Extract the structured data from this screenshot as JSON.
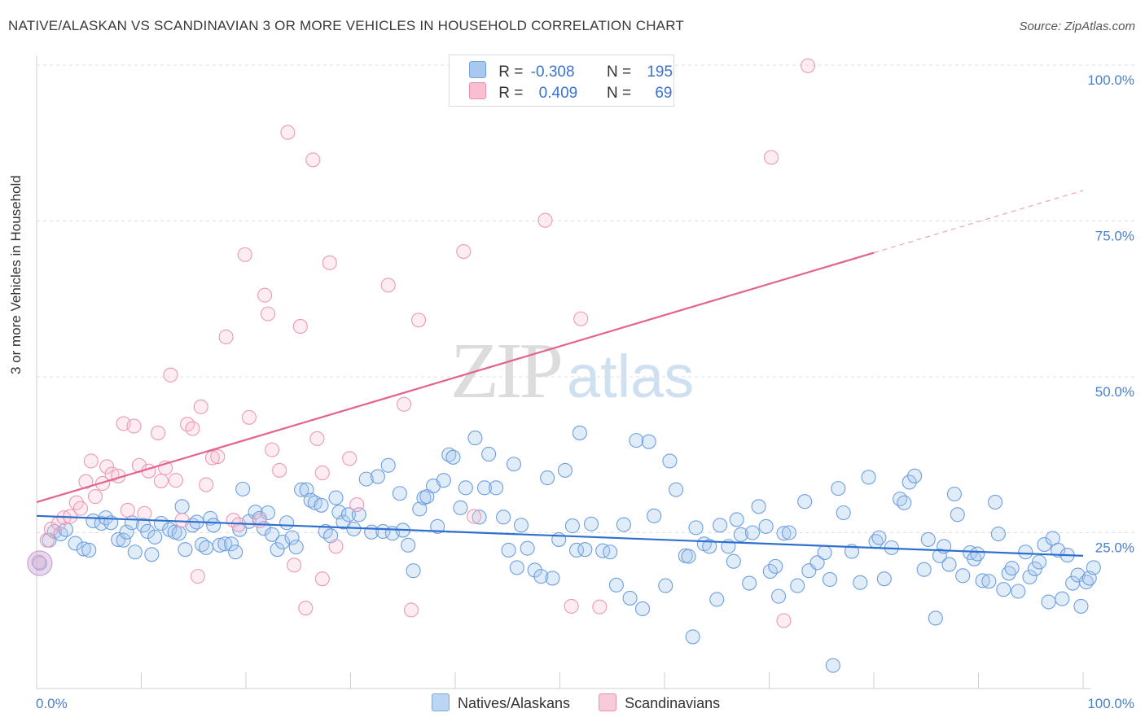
{
  "title": "NATIVE/ALASKAN VS SCANDINAVIAN 3 OR MORE VEHICLES IN HOUSEHOLD CORRELATION CHART",
  "source": "Source: ZipAtlas.com",
  "watermark": {
    "zip": "ZIP",
    "atlas": "atlas"
  },
  "legend": {
    "r_label": "R =",
    "n_label": "N =",
    "rows": [
      {
        "r": "-0.308",
        "n": "195",
        "color": "#a9c8ee",
        "border": "#6fa2e0"
      },
      {
        "r": "0.409",
        "n": "69",
        "color": "#f7bfd0",
        "border": "#ea8fac"
      }
    ]
  },
  "bottom_legend": [
    {
      "label": "Natives/Alaskans",
      "color": "#bcd5f3",
      "border": "#7aa8e0"
    },
    {
      "label": "Scandinavians",
      "color": "#f8cbd9",
      "border": "#ea8fac"
    }
  ],
  "colors": {
    "blue_fill": "rgba(169,200,238,0.35)",
    "blue_stroke": "#6d9fe0",
    "blue_line": "#2f6fce",
    "pink_fill": "rgba(247,191,208,0.30)",
    "pink_stroke": "#eb9ab4",
    "pink_line": "#e4628e",
    "grid": "#dedede",
    "tick": "#4a7fc9"
  },
  "chart_data": {
    "type": "scatter",
    "title": "NATIVE/ALASKAN VS SCANDINAVIAN 3 OR MORE VEHICLES IN HOUSEHOLD CORRELATION CHART",
    "xlabel": "",
    "ylabel": "3 or more Vehicles in Household",
    "xlim": [
      0,
      100
    ],
    "ylim": [
      0,
      100
    ],
    "x_tick_labels": [
      "0.0%",
      "100.0%"
    ],
    "y_tick_labels": [
      "25.0%",
      "50.0%",
      "75.0%",
      "100.0%"
    ],
    "y_ticks": [
      25,
      50,
      75,
      100
    ],
    "grid": true,
    "series": [
      {
        "name": "Natives/Alaskans",
        "R": -0.308,
        "N": 195,
        "trend": {
          "x": [
            0,
            100
          ],
          "y": [
            27.7,
            21.3
          ]
        },
        "points": [
          [
            0.3,
            20.1
          ],
          [
            1.2,
            23.8
          ],
          [
            1.7,
            25.2
          ],
          [
            2.3,
            24.8
          ],
          [
            2.8,
            25.5
          ],
          [
            3.7,
            23.3
          ],
          [
            4.5,
            22.4
          ],
          [
            5.0,
            22.2
          ],
          [
            5.4,
            26.9
          ],
          [
            6.2,
            26.5
          ],
          [
            6.6,
            27.4
          ],
          [
            7.1,
            26.6
          ],
          [
            7.8,
            23.9
          ],
          [
            8.3,
            23.8
          ],
          [
            8.6,
            25.1
          ],
          [
            9.1,
            26.6
          ],
          [
            9.4,
            21.9
          ],
          [
            10.2,
            26.2
          ],
          [
            10.6,
            25.2
          ],
          [
            11.0,
            21.5
          ],
          [
            11.3,
            24.3
          ],
          [
            11.9,
            26.5
          ],
          [
            12.7,
            25.5
          ],
          [
            13.2,
            25.1
          ],
          [
            13.6,
            24.9
          ],
          [
            13.9,
            29.2
          ],
          [
            14.2,
            22.3
          ],
          [
            14.9,
            26.2
          ],
          [
            15.3,
            26.7
          ],
          [
            15.8,
            23.1
          ],
          [
            16.2,
            22.6
          ],
          [
            16.6,
            27.3
          ],
          [
            16.9,
            26.2
          ],
          [
            17.5,
            23.0
          ],
          [
            18.0,
            23.2
          ],
          [
            18.6,
            23.2
          ],
          [
            19.0,
            21.9
          ],
          [
            19.4,
            25.5
          ],
          [
            19.7,
            32.0
          ],
          [
            20.3,
            26.8
          ],
          [
            20.9,
            28.3
          ],
          [
            21.3,
            27.3
          ],
          [
            21.7,
            25.7
          ],
          [
            22.1,
            28.2
          ],
          [
            22.5,
            24.7
          ],
          [
            23.0,
            22.3
          ],
          [
            23.5,
            23.5
          ],
          [
            23.9,
            26.6
          ],
          [
            24.4,
            24.2
          ],
          [
            24.8,
            22.7
          ],
          [
            25.3,
            31.9
          ],
          [
            25.8,
            31.9
          ],
          [
            26.2,
            30.2
          ],
          [
            26.6,
            29.8
          ],
          [
            27.2,
            29.4
          ],
          [
            27.6,
            25.2
          ],
          [
            28.1,
            24.5
          ],
          [
            28.6,
            30.6
          ],
          [
            28.9,
            28.3
          ],
          [
            29.3,
            26.7
          ],
          [
            29.8,
            27.9
          ],
          [
            30.3,
            25.6
          ],
          [
            30.8,
            27.9
          ],
          [
            31.5,
            33.6
          ],
          [
            32.0,
            25.1
          ],
          [
            32.6,
            34.0
          ],
          [
            33.1,
            25.2
          ],
          [
            33.6,
            35.8
          ],
          [
            34.0,
            24.9
          ],
          [
            34.7,
            31.3
          ],
          [
            35.0,
            25.4
          ],
          [
            35.5,
            23.0
          ],
          [
            36.0,
            18.9
          ],
          [
            36.6,
            28.8
          ],
          [
            37.0,
            30.6
          ],
          [
            37.3,
            30.8
          ],
          [
            37.9,
            32.5
          ],
          [
            38.3,
            26.0
          ],
          [
            38.9,
            33.4
          ],
          [
            39.4,
            37.5
          ],
          [
            39.8,
            37.1
          ],
          [
            40.5,
            29.0
          ],
          [
            41.0,
            32.2
          ],
          [
            41.9,
            40.2
          ],
          [
            42.3,
            27.5
          ],
          [
            42.8,
            32.2
          ],
          [
            43.2,
            37.6
          ],
          [
            43.9,
            32.2
          ],
          [
            44.6,
            27.5
          ],
          [
            45.1,
            22.2
          ],
          [
            45.6,
            36.0
          ],
          [
            45.9,
            19.4
          ],
          [
            46.3,
            26.2
          ],
          [
            46.9,
            22.5
          ],
          [
            47.6,
            19.0
          ],
          [
            48.2,
            18.0
          ],
          [
            48.8,
            33.8
          ],
          [
            49.3,
            17.7
          ],
          [
            49.9,
            23.9
          ],
          [
            50.5,
            35.0
          ],
          [
            51.2,
            26.1
          ],
          [
            51.6,
            22.2
          ],
          [
            51.9,
            41.0
          ],
          [
            52.4,
            22.3
          ],
          [
            53.0,
            26.4
          ],
          [
            54.1,
            22.1
          ],
          [
            54.8,
            21.9
          ],
          [
            55.4,
            16.6
          ],
          [
            56.1,
            26.3
          ],
          [
            56.7,
            14.5
          ],
          [
            57.3,
            39.8
          ],
          [
            57.9,
            12.8
          ],
          [
            58.5,
            39.6
          ],
          [
            59.0,
            27.7
          ],
          [
            60.1,
            16.5
          ],
          [
            60.5,
            36.5
          ],
          [
            61.1,
            31.9
          ],
          [
            62.0,
            21.3
          ],
          [
            62.3,
            21.2
          ],
          [
            62.7,
            8.3
          ],
          [
            63.0,
            25.8
          ],
          [
            63.8,
            23.2
          ],
          [
            64.3,
            22.8
          ],
          [
            65.0,
            14.3
          ],
          [
            65.3,
            26.2
          ],
          [
            66.1,
            22.8
          ],
          [
            66.6,
            20.4
          ],
          [
            66.9,
            27.1
          ],
          [
            67.3,
            24.7
          ],
          [
            68.1,
            16.9
          ],
          [
            68.4,
            25.0
          ],
          [
            69.0,
            29.2
          ],
          [
            69.7,
            26.0
          ],
          [
            70.1,
            18.8
          ],
          [
            70.6,
            19.6
          ],
          [
            70.9,
            14.8
          ],
          [
            71.4,
            24.9
          ],
          [
            71.9,
            25.0
          ],
          [
            72.7,
            16.5
          ],
          [
            73.4,
            30.0
          ],
          [
            73.8,
            18.9
          ],
          [
            74.6,
            20.2
          ],
          [
            75.3,
            21.8
          ],
          [
            75.8,
            17.5
          ],
          [
            76.1,
            3.7
          ],
          [
            76.6,
            32.1
          ],
          [
            77.1,
            28.2
          ],
          [
            77.9,
            22.0
          ],
          [
            78.7,
            17.0
          ],
          [
            79.5,
            33.9
          ],
          [
            80.2,
            23.6
          ],
          [
            80.5,
            24.2
          ],
          [
            81.0,
            17.6
          ],
          [
            81.7,
            22.6
          ],
          [
            82.5,
            30.4
          ],
          [
            82.9,
            29.8
          ],
          [
            83.4,
            33.1
          ],
          [
            83.9,
            34.1
          ],
          [
            84.8,
            19.1
          ],
          [
            85.2,
            23.9
          ],
          [
            85.9,
            11.3
          ],
          [
            86.3,
            21.3
          ],
          [
            86.7,
            22.8
          ],
          [
            87.2,
            19.9
          ],
          [
            87.7,
            31.2
          ],
          [
            88.0,
            27.9
          ],
          [
            88.5,
            18.1
          ],
          [
            89.2,
            21.8
          ],
          [
            89.6,
            20.8
          ],
          [
            89.9,
            21.6
          ],
          [
            90.4,
            17.3
          ],
          [
            91.0,
            17.2
          ],
          [
            91.6,
            29.9
          ],
          [
            91.9,
            24.8
          ],
          [
            92.4,
            15.9
          ],
          [
            92.9,
            18.5
          ],
          [
            93.2,
            19.3
          ],
          [
            93.8,
            15.6
          ],
          [
            94.5,
            21.9
          ],
          [
            94.9,
            17.9
          ],
          [
            95.4,
            19.2
          ],
          [
            95.8,
            20.3
          ],
          [
            96.3,
            23.1
          ],
          [
            96.7,
            13.9
          ],
          [
            97.1,
            24.1
          ],
          [
            97.6,
            22.2
          ],
          [
            98.0,
            14.4
          ],
          [
            98.5,
            21.4
          ],
          [
            99.0,
            16.9
          ],
          [
            99.5,
            18.2
          ],
          [
            99.8,
            13.2
          ],
          [
            100.3,
            17.1
          ],
          [
            100.6,
            17.7
          ],
          [
            101.0,
            19.4
          ]
        ]
      },
      {
        "name": "Scandinavians",
        "R": 0.409,
        "N": 69,
        "trend": {
          "x": [
            0,
            80
          ],
          "y": [
            29.9,
            69.9
          ]
        },
        "trend_extension": {
          "x": [
            80,
            100
          ],
          "y": [
            69.9,
            79.9
          ]
        },
        "points": [
          [
            0.2,
            20.3
          ],
          [
            1.0,
            23.8
          ],
          [
            1.4,
            25.6
          ],
          [
            2.1,
            26.5
          ],
          [
            2.6,
            27.4
          ],
          [
            3.2,
            27.6
          ],
          [
            3.8,
            29.8
          ],
          [
            4.2,
            28.9
          ],
          [
            4.7,
            33.2
          ],
          [
            5.2,
            36.5
          ],
          [
            5.6,
            30.8
          ],
          [
            6.3,
            32.9
          ],
          [
            6.7,
            35.6
          ],
          [
            7.2,
            34.4
          ],
          [
            7.8,
            34.1
          ],
          [
            8.3,
            42.5
          ],
          [
            8.7,
            28.6
          ],
          [
            9.3,
            42.1
          ],
          [
            9.8,
            35.8
          ],
          [
            10.3,
            28.1
          ],
          [
            10.7,
            34.9
          ],
          [
            11.6,
            41.0
          ],
          [
            11.9,
            33.3
          ],
          [
            12.3,
            35.4
          ],
          [
            12.8,
            50.3
          ],
          [
            13.3,
            33.4
          ],
          [
            13.9,
            27.0
          ],
          [
            14.4,
            42.4
          ],
          [
            14.9,
            41.7
          ],
          [
            15.4,
            18.0
          ],
          [
            15.7,
            45.2
          ],
          [
            16.2,
            32.7
          ],
          [
            16.8,
            37.0
          ],
          [
            17.3,
            37.2
          ],
          [
            18.1,
            56.4
          ],
          [
            18.8,
            27.0
          ],
          [
            19.3,
            26.3
          ],
          [
            19.9,
            69.6
          ],
          [
            20.3,
            43.5
          ],
          [
            21.3,
            26.9
          ],
          [
            21.8,
            63.1
          ],
          [
            22.1,
            60.1
          ],
          [
            22.5,
            38.3
          ],
          [
            23.2,
            35.0
          ],
          [
            24.0,
            89.2
          ],
          [
            24.6,
            19.8
          ],
          [
            25.2,
            58.1
          ],
          [
            25.7,
            12.9
          ],
          [
            26.4,
            84.8
          ],
          [
            26.8,
            40.1
          ],
          [
            27.3,
            17.6
          ],
          [
            27.3,
            34.6
          ],
          [
            28.0,
            68.3
          ],
          [
            28.6,
            22.8
          ],
          [
            29.9,
            36.9
          ],
          [
            30.6,
            29.5
          ],
          [
            33.6,
            64.7
          ],
          [
            35.1,
            45.6
          ],
          [
            35.8,
            12.6
          ],
          [
            36.5,
            59.1
          ],
          [
            40.8,
            70.1
          ],
          [
            41.8,
            27.6
          ],
          [
            48.6,
            75.1
          ],
          [
            51.1,
            13.2
          ],
          [
            52.0,
            59.3
          ],
          [
            53.8,
            13.1
          ],
          [
            70.2,
            85.2
          ],
          [
            71.4,
            10.9
          ],
          [
            73.7,
            99.9
          ]
        ]
      }
    ]
  }
}
